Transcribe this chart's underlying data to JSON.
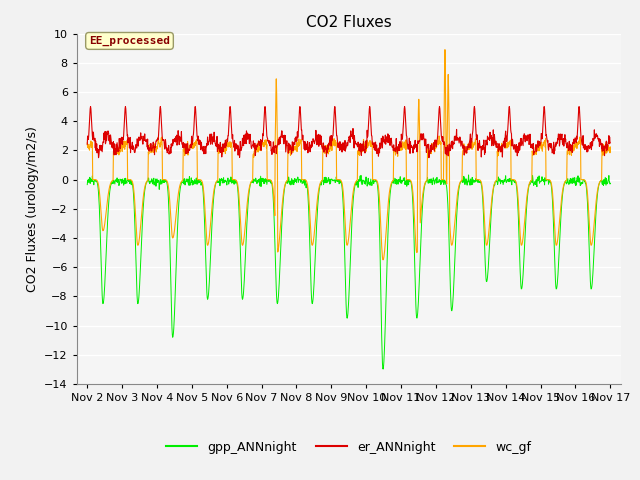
{
  "title": "CO2 Fluxes",
  "ylabel": "CO2 Fluxes (urology/m2/s)",
  "ylim": [
    -14,
    10
  ],
  "yticks": [
    -14,
    -12,
    -10,
    -8,
    -6,
    -4,
    -2,
    0,
    2,
    4,
    6,
    8,
    10
  ],
  "xlim_start": 0.7,
  "xlim_end": 16.3,
  "xtick_labels": [
    "Nov 2",
    "Nov 3",
    "Nov 4",
    "Nov 5",
    "Nov 6",
    "Nov 7",
    "Nov 8",
    "Nov 9",
    "Nov 10",
    "Nov 11",
    "Nov 12",
    "Nov 13",
    "Nov 14",
    "Nov 15",
    "Nov 16",
    "Nov 17"
  ],
  "xtick_positions": [
    1,
    2,
    3,
    4,
    5,
    6,
    7,
    8,
    9,
    10,
    11,
    12,
    13,
    14,
    15,
    16
  ],
  "gpp_color": "#00EE00",
  "er_color": "#DD0000",
  "wc_color": "#FFA500",
  "annotation_text": "EE_processed",
  "annotation_color": "#880000",
  "annotation_bg": "#FFFFCC",
  "bg_color": "#E8E8E8",
  "plot_bg": "#F5F5F5",
  "legend_entries": [
    "gpp_ANNnight",
    "er_ANNnight",
    "wc_gf"
  ],
  "title_fontsize": 11,
  "label_fontsize": 9,
  "tick_fontsize": 8
}
